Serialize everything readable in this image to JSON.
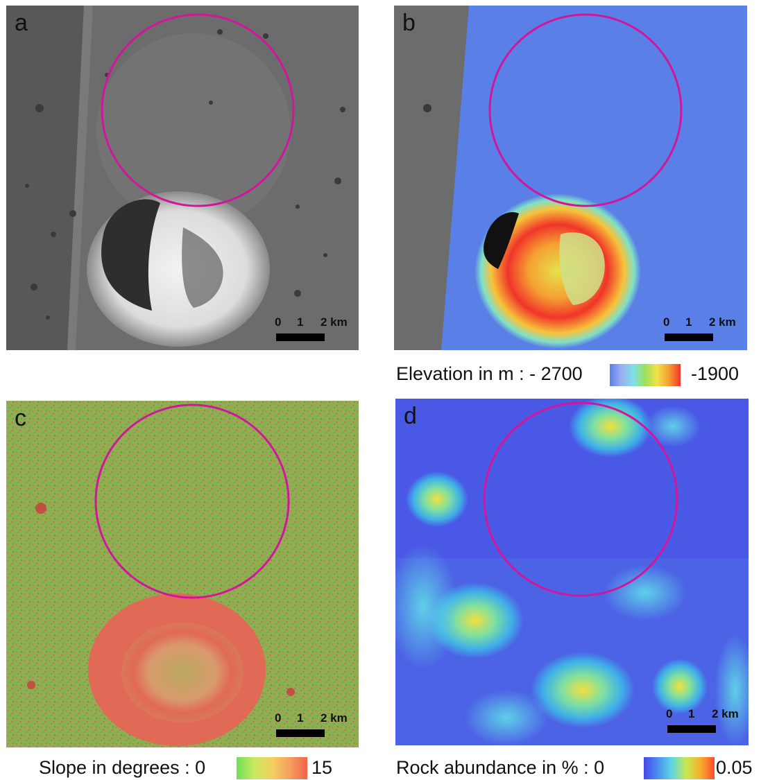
{
  "panels": {
    "a": {
      "label": "a"
    },
    "b": {
      "label": "b"
    },
    "c": {
      "label": "c"
    },
    "d": {
      "label": "d"
    }
  },
  "scalebar": {
    "t0": "0",
    "t1": "1",
    "t2": "2 km"
  },
  "legends": {
    "elevation": {
      "prefix": "Elevation in m : - 2700",
      "max": "-1900"
    },
    "slope": {
      "prefix": "Slope in degrees : 0",
      "max": "15"
    },
    "rock": {
      "prefix": "Rock abundance in % : 0",
      "max": "0.05"
    }
  },
  "colors": {
    "circle": "#d1169c",
    "elevation_low": "#5a7fe6",
    "elevation_high": "#f0352a",
    "slope_low": "#6ee05a",
    "slope_high": "#f2624a",
    "rock_low": "#4747e8",
    "rock_high": "#ff4a2a"
  }
}
